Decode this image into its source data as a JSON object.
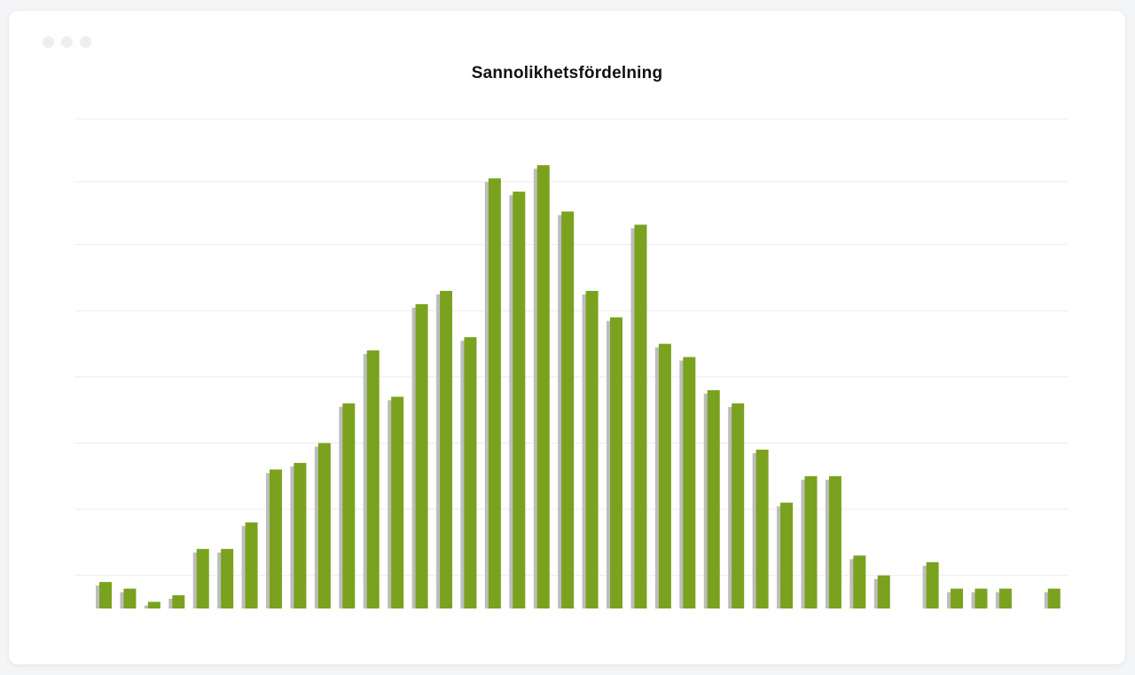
{
  "window": {
    "controls": [
      "window-dot-1",
      "window-dot-2",
      "window-dot-3"
    ]
  },
  "chart_data": {
    "type": "bar",
    "title": "Sannolikhetsfördelning",
    "xlabel": "",
    "ylabel": "",
    "grid": true,
    "legend": "none",
    "ylim": [
      0,
      37
    ],
    "values": [
      2,
      1.5,
      0.5,
      1,
      4.5,
      4.5,
      6.5,
      10.5,
      11,
      12.5,
      15.5,
      19.5,
      16,
      23,
      24,
      20.5,
      32.5,
      31.5,
      33.5,
      30,
      24,
      22,
      29,
      20,
      19,
      16.5,
      15.5,
      12,
      8,
      10,
      10,
      4,
      2.5,
      0,
      3.5,
      1.5,
      1.5,
      1.5,
      0,
      1.5
    ],
    "colors": {
      "bar": "#7aa21e",
      "shadow": "#bdbdbd",
      "grid": "#ececec"
    }
  }
}
